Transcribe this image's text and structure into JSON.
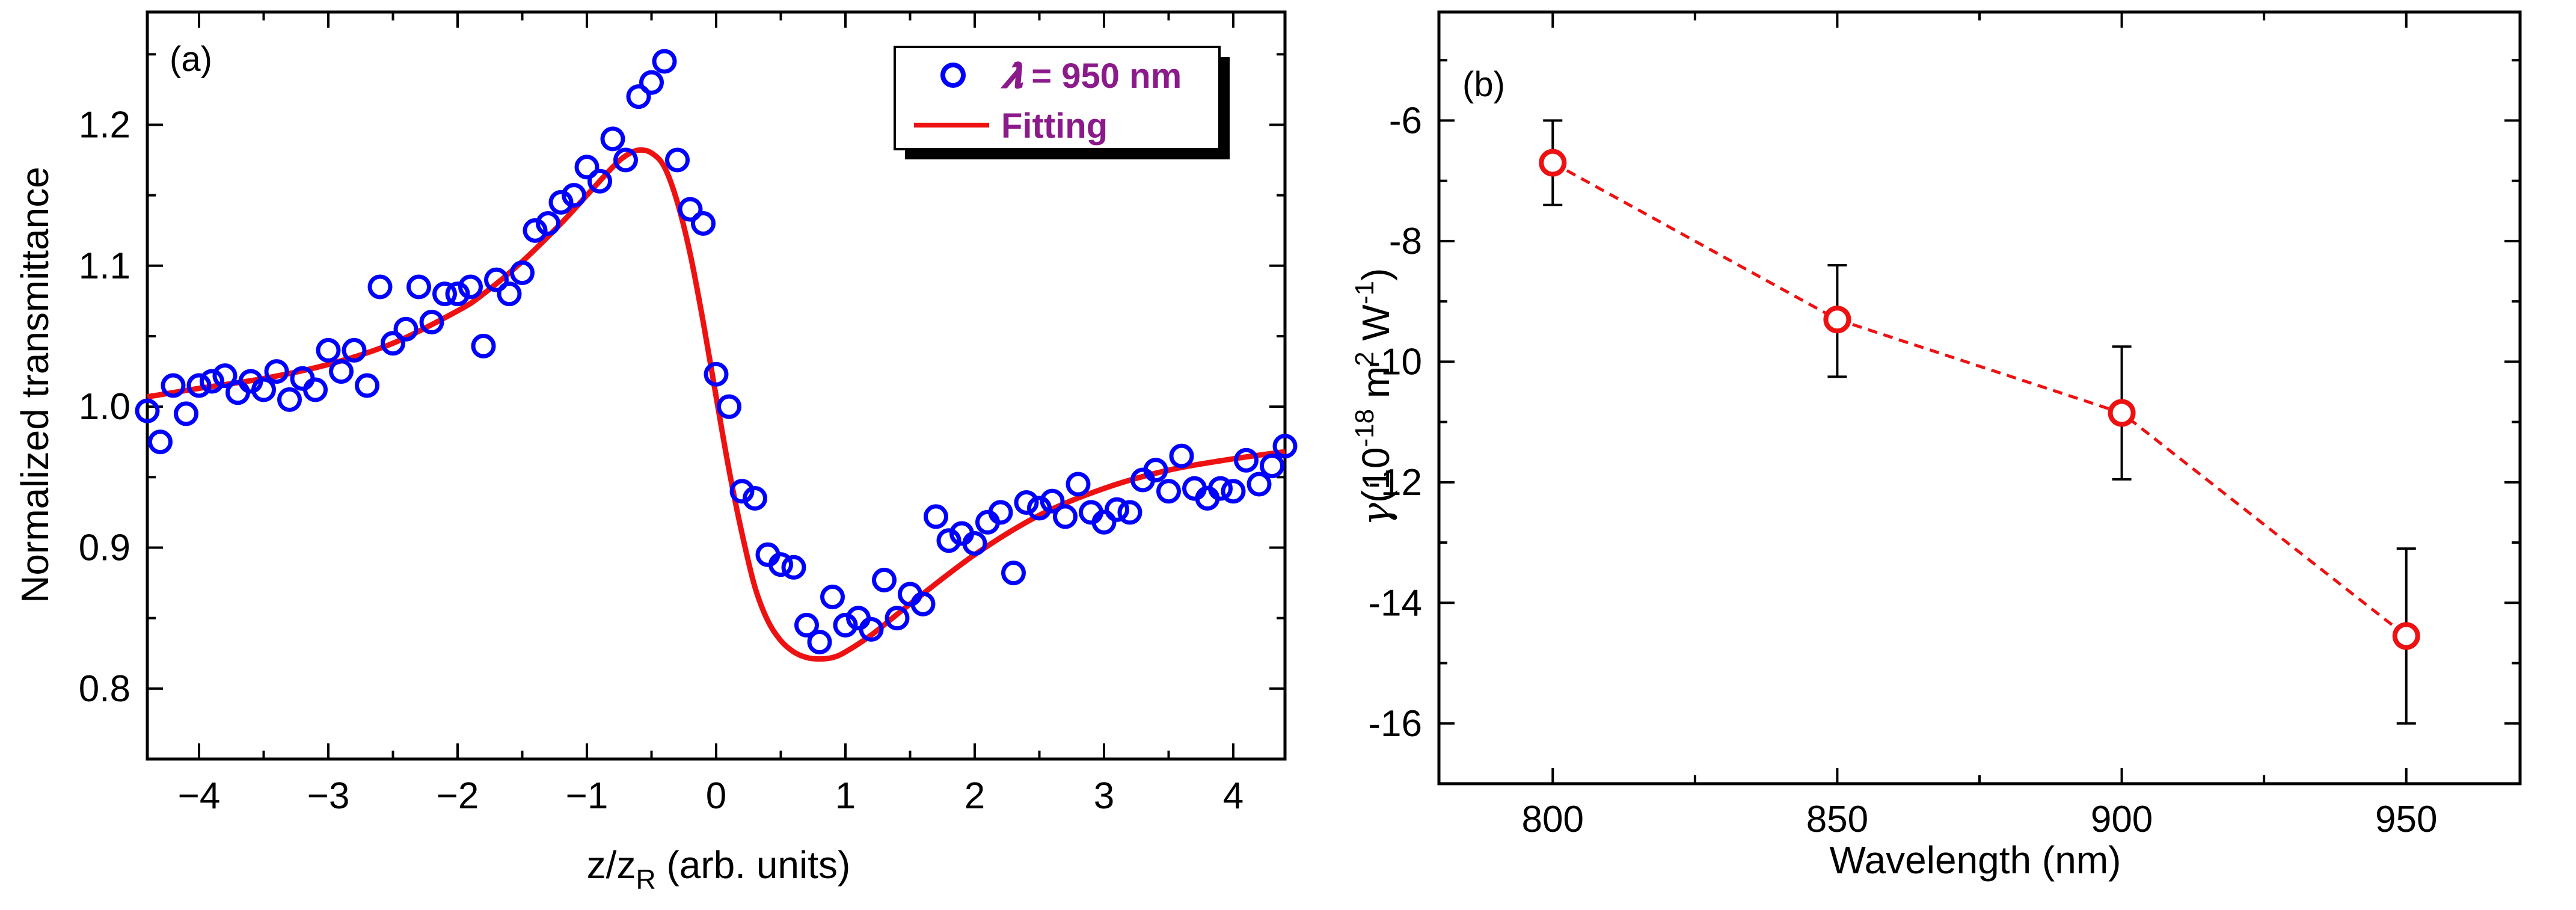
{
  "chart_data": [
    {
      "type": "scatter",
      "panel_label": "(a)",
      "xlabel": "z/z",
      "xlabel_sub": "R",
      "xlabel_suffix": " (arb. units)",
      "ylabel": "Normalized transmittance",
      "xlim": [
        -4.4,
        4.4
      ],
      "ylim": [
        0.75,
        1.28
      ],
      "xticks": [
        -4,
        -3,
        -2,
        -1,
        0,
        1,
        2,
        3,
        4
      ],
      "yticks": [
        0.8,
        0.9,
        1.0,
        1.1,
        1.2
      ],
      "ytick_labels": [
        "0.8",
        "0.9",
        "1.0",
        "1.1",
        "1.2"
      ],
      "legend": {
        "position": "top-right",
        "entries": [
          {
            "symbol": "𝝀",
            "label": " = 950 nm",
            "marker": "circle"
          },
          {
            "label": "Fitting",
            "marker": "line"
          }
        ]
      },
      "series": [
        {
          "name": "λ = 950 nm",
          "color": "#0000ff",
          "x": [
            -4.4,
            -4.3,
            -4.2,
            -4.1,
            -4.0,
            -3.9,
            -3.8,
            -3.7,
            -3.6,
            -3.5,
            -3.4,
            -3.3,
            -3.2,
            -3.1,
            -3.0,
            -2.9,
            -2.8,
            -2.7,
            -2.6,
            -2.5,
            -2.4,
            -2.3,
            -2.2,
            -2.1,
            -2.0,
            -1.9,
            -1.8,
            -1.7,
            -1.6,
            -1.5,
            -1.4,
            -1.3,
            -1.2,
            -1.1,
            -1.0,
            -0.9,
            -0.8,
            -0.7,
            -0.6,
            -0.5,
            -0.4,
            -0.3,
            -0.2,
            -0.1,
            0.0,
            0.1,
            0.2,
            0.3,
            0.4,
            0.5,
            0.6,
            0.7,
            0.8,
            0.9,
            1.0,
            1.1,
            1.2,
            1.3,
            1.4,
            1.5,
            1.6,
            1.7,
            1.8,
            1.9,
            2.0,
            2.1,
            2.2,
            2.3,
            2.4,
            2.5,
            2.6,
            2.7,
            2.8,
            2.9,
            3.0,
            3.1,
            3.2,
            3.3,
            3.4,
            3.5,
            3.6,
            3.7,
            3.8,
            3.9,
            4.0,
            4.1,
            4.2,
            4.3,
            4.4
          ],
          "y": [
            0.997,
            0.975,
            1.015,
            0.995,
            1.015,
            1.018,
            1.022,
            1.01,
            1.018,
            1.012,
            1.025,
            1.005,
            1.02,
            1.012,
            1.04,
            1.025,
            1.04,
            1.015,
            1.085,
            1.045,
            1.055,
            1.085,
            1.06,
            1.08,
            1.08,
            1.085,
            1.043,
            1.09,
            1.08,
            1.095,
            1.125,
            1.13,
            1.145,
            1.15,
            1.17,
            1.16,
            1.19,
            1.175,
            1.22,
            1.23,
            1.245,
            1.175,
            1.14,
            1.13,
            1.023,
            1.0,
            0.94,
            0.935,
            0.895,
            0.888,
            0.886,
            0.845,
            0.833,
            0.865,
            0.845,
            0.85,
            0.842,
            0.877,
            0.85,
            0.867,
            0.86,
            0.922,
            0.905,
            0.91,
            0.903,
            0.918,
            0.925,
            0.882,
            0.932,
            0.928,
            0.933,
            0.922,
            0.945,
            0.925,
            0.918,
            0.927,
            0.925,
            0.948,
            0.955,
            0.94,
            0.965,
            0.942,
            0.935,
            0.942,
            0.94,
            0.962,
            0.945,
            0.958,
            0.972
          ]
        },
        {
          "name": "Fitting",
          "color": "#ee1111",
          "x": [
            -4.4,
            -4.0,
            -3.5,
            -3.0,
            -2.5,
            -2.0,
            -1.8,
            -1.5,
            -1.2,
            -1.0,
            -0.8,
            -0.7,
            -0.6,
            -0.5,
            -0.4,
            -0.3,
            -0.2,
            -0.1,
            0.0,
            0.1,
            0.2,
            0.3,
            0.4,
            0.5,
            0.6,
            0.7,
            0.8,
            0.9,
            1.0,
            1.2,
            1.5,
            2.0,
            2.5,
            3.0,
            3.5,
            4.0,
            4.4
          ],
          "y": [
            1.007,
            1.013,
            1.02,
            1.03,
            1.045,
            1.068,
            1.08,
            1.103,
            1.13,
            1.15,
            1.17,
            1.178,
            1.182,
            1.18,
            1.17,
            1.145,
            1.108,
            1.06,
            1.007,
            0.955,
            0.91,
            0.872,
            0.848,
            0.834,
            0.826,
            0.822,
            0.821,
            0.822,
            0.826,
            0.838,
            0.86,
            0.895,
            0.923,
            0.942,
            0.955,
            0.963,
            0.968
          ]
        }
      ]
    },
    {
      "type": "line",
      "panel_label": "(b)",
      "xlabel": "Wavelength (nm)",
      "ylabel_symbol": "γ",
      "ylabel_text": "(10",
      "ylabel_exp1": "-18",
      "ylabel_mid": " m",
      "ylabel_exp2": "2",
      "ylabel_mid2": " W",
      "ylabel_exp3": "-1",
      "ylabel_end": ")",
      "xlim": [
        780,
        970
      ],
      "ylim": [
        -17,
        -4.2
      ],
      "xticks": [
        800,
        850,
        900,
        950
      ],
      "yticks": [
        -16,
        -14,
        -12,
        -10,
        -8,
        -6
      ],
      "ytick_labels": [
        "-16",
        "-14",
        "-12",
        "-10",
        "-8",
        "-6"
      ],
      "series": [
        {
          "name": "gamma",
          "color": "#ee1111",
          "style": "dashed",
          "x": [
            800,
            850,
            900,
            950
          ],
          "y": [
            -6.7,
            -9.3,
            -10.85,
            -14.55
          ],
          "err_low": [
            0.7,
            0.95,
            1.1,
            1.45
          ],
          "err_high": [
            0.7,
            0.9,
            1.1,
            1.45
          ]
        }
      ]
    }
  ]
}
